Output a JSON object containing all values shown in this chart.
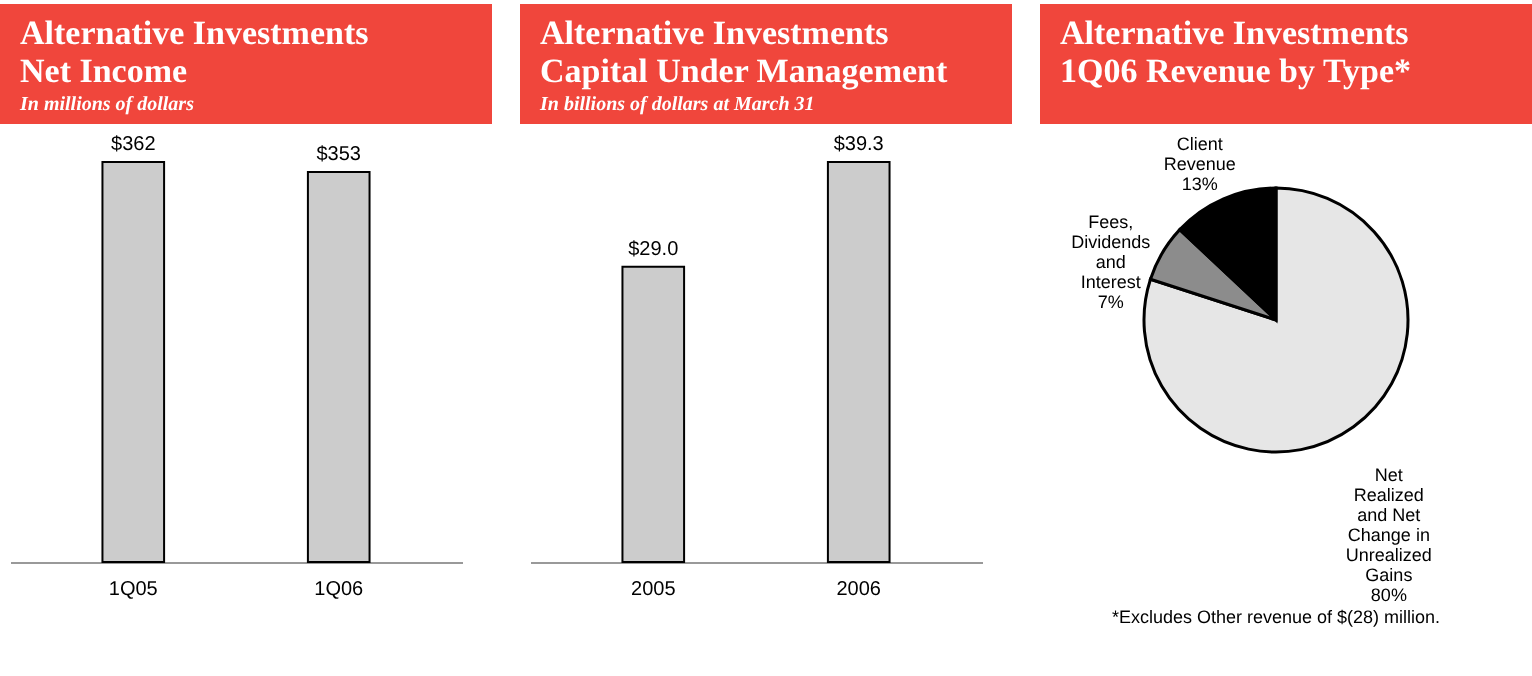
{
  "chart_data": [
    {
      "type": "bar",
      "title": "Alternative Investments\nNet Income",
      "subtitle": "In millions of dollars",
      "categories": [
        "1Q05",
        "1Q06"
      ],
      "values": [
        362,
        353
      ],
      "value_labels": [
        "$362",
        "$353"
      ],
      "color": "#cccccc"
    },
    {
      "type": "bar",
      "title": "Alternative Investments\nCapital Under Management",
      "subtitle": "In billions of dollars at March 31",
      "categories": [
        "2005",
        "2006"
      ],
      "values": [
        29.0,
        39.3
      ],
      "value_labels": [
        "$29.0",
        "$39.3"
      ],
      "color": "#cccccc"
    },
    {
      "type": "pie",
      "title": "Alternative Investments\n1Q06 Revenue by Type*",
      "categories": [
        "Net Realized and Net Change in Unrealized Gains",
        "Fees, Dividends and Interest",
        "Client Revenue"
      ],
      "values": [
        80,
        7,
        13
      ],
      "value_labels": [
        "80%",
        "7%",
        "13%"
      ],
      "colors": [
        "#e6e6e6",
        "#8c8c8c",
        "#000000"
      ],
      "annotations": [
        "*Excludes Other revenue of $(28) million."
      ]
    }
  ]
}
